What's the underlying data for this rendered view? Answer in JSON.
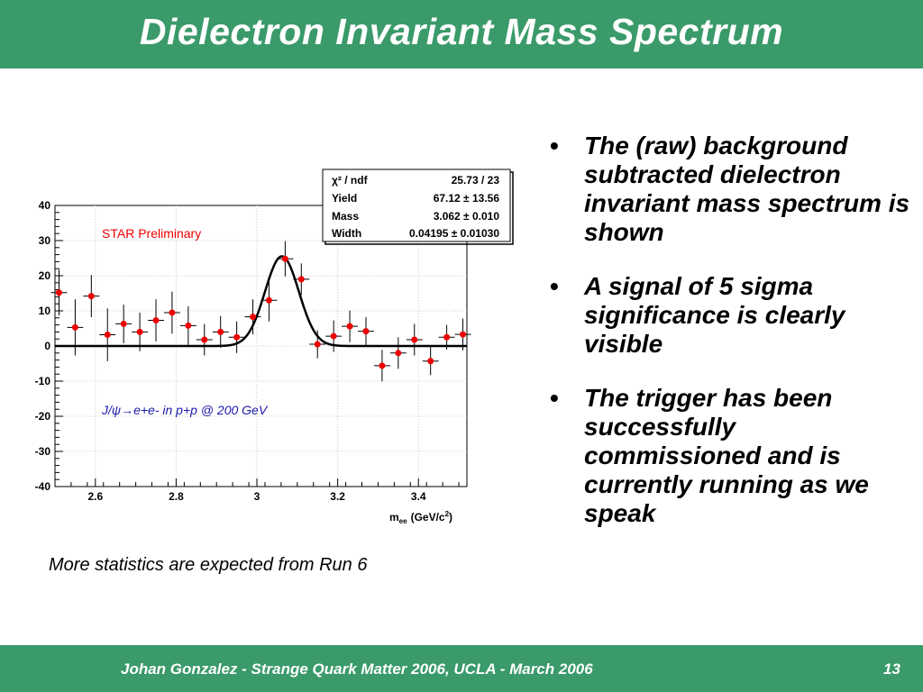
{
  "slide": {
    "title": "Dielectron Invariant Mass Spectrum",
    "footer": "Johan Gonzalez - Strange Quark Matter 2006, UCLA - March 2006",
    "page_number": "13",
    "theme_color": "#3a9a6a",
    "bullet_glyph": "•",
    "bullets": [
      "The (raw) background subtracted dielectron invariant mass spectrum is shown",
      "A signal of 5 sigma significance is clearly visible",
      "The trigger has been successfully commissioned and is currently running as we speak"
    ],
    "caption": "More statistics are expected from Run 6"
  },
  "chart_data": {
    "type": "scatter",
    "title": "",
    "xlabel_main": "m",
    "xlabel_sub": "ee",
    "xlabel_unit": "(GeV/c",
    "xlabel_sup": "2",
    "xlabel_close": ")",
    "ylabel": "",
    "xlim": [
      2.5,
      3.52
    ],
    "ylim": [
      -40,
      40
    ],
    "grid": true,
    "x_ticks": [
      2.6,
      2.8,
      3,
      3.2,
      3.4
    ],
    "x_tick_labels": [
      "2.6",
      "2.8",
      "3",
      "3.2",
      "3.4"
    ],
    "y_ticks": [
      -40,
      -30,
      -20,
      -10,
      0,
      10,
      20,
      30,
      40
    ],
    "y_tick_labels": [
      "-40",
      "-30",
      "-20",
      "-10",
      "0",
      "10",
      "20",
      "30",
      "40"
    ],
    "annotations": {
      "preliminary": "STAR Preliminary",
      "process": "J/ψ",
      "arrow": "→",
      "process_rest": "e+e- in p+p @ 200 GeV"
    },
    "marker_color": "#ee0000",
    "fit": {
      "function": "gaussian",
      "yield": 67.12,
      "mass": 3.062,
      "width": 0.04195,
      "color": "#000000"
    },
    "stats_box": [
      {
        "label": "χ² / ndf",
        "value": "25.73 / 23"
      },
      {
        "label": "Yield",
        "value": "67.12 ± 13.56"
      },
      {
        "label": "Mass",
        "value": "3.062 ± 0.010"
      },
      {
        "label": "Width",
        "value": "0.04195 ± 0.01030"
      }
    ],
    "bin_half_width": 0.02,
    "points": [
      {
        "x": 2.51,
        "y": 15.2,
        "err": 6.5
      },
      {
        "x": 2.55,
        "y": 5.3,
        "err": 8.0
      },
      {
        "x": 2.59,
        "y": 14.2,
        "err": 6.0
      },
      {
        "x": 2.63,
        "y": 3.2,
        "err": 7.5
      },
      {
        "x": 2.67,
        "y": 6.3,
        "err": 5.5
      },
      {
        "x": 2.71,
        "y": 4.0,
        "err": 5.5
      },
      {
        "x": 2.75,
        "y": 7.3,
        "err": 6.0
      },
      {
        "x": 2.79,
        "y": 9.5,
        "err": 6.0
      },
      {
        "x": 2.83,
        "y": 5.8,
        "err": 5.5
      },
      {
        "x": 2.87,
        "y": 1.8,
        "err": 4.5
      },
      {
        "x": 2.91,
        "y": 4.0,
        "err": 4.5
      },
      {
        "x": 2.95,
        "y": 2.5,
        "err": 4.5
      },
      {
        "x": 2.99,
        "y": 8.3,
        "err": 5.0
      },
      {
        "x": 3.03,
        "y": 13.0,
        "err": 6.0
      },
      {
        "x": 3.07,
        "y": 24.8,
        "err": 5.0
      },
      {
        "x": 3.11,
        "y": 19.0,
        "err": 4.5
      },
      {
        "x": 3.15,
        "y": 0.5,
        "err": 4.0
      },
      {
        "x": 3.19,
        "y": 2.8,
        "err": 4.5
      },
      {
        "x": 3.23,
        "y": 5.6,
        "err": 4.5
      },
      {
        "x": 3.27,
        "y": 4.2,
        "err": 4.0
      },
      {
        "x": 3.31,
        "y": -5.6,
        "err": 4.5
      },
      {
        "x": 3.35,
        "y": -2.0,
        "err": 4.5
      },
      {
        "x": 3.39,
        "y": 1.8,
        "err": 4.5
      },
      {
        "x": 3.43,
        "y": -4.3,
        "err": 4.0
      },
      {
        "x": 3.47,
        "y": 2.5,
        "err": 3.5
      },
      {
        "x": 3.51,
        "y": 3.3,
        "err": 4.5
      }
    ]
  }
}
